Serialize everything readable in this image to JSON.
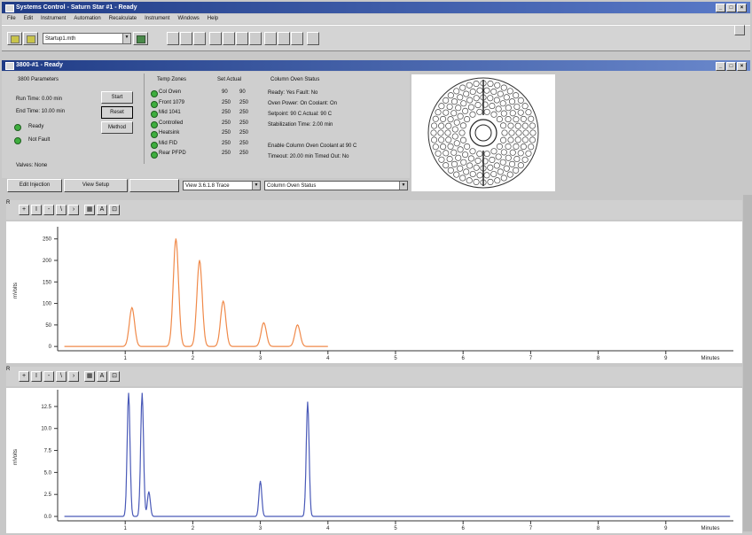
{
  "window": {
    "title": "Systems Control - Saturn Star #1 - Ready"
  },
  "menu": [
    "File",
    "Edit",
    "Instrument",
    "Automation",
    "Recalculate",
    "Instrument",
    "Windows",
    "Help"
  ],
  "toolbar": {
    "method_select": "Startup1.mth"
  },
  "subwindow": {
    "title": "3800-#1 - Ready"
  },
  "status": {
    "section_label": "3800 Parameters",
    "run_time": "Run Time:   0.00 min",
    "end_time": "End Time:  10.00 min",
    "ready_label": "Ready",
    "not_fault_label": "Not Fault",
    "valves_label": "Valves:   None",
    "start_btn": "Start",
    "reset_btn": "Reset",
    "method_btn": "Method",
    "temp_zones_header": "Temp Zones",
    "set_actual_header": "Set  Actual",
    "zones": [
      {
        "name": "Col Oven",
        "set": "90",
        "actual": "90"
      },
      {
        "name": "Front 1079",
        "set": "250",
        "actual": "250"
      },
      {
        "name": "Mid 1041",
        "set": "250",
        "actual": "250"
      },
      {
        "name": "Controlled",
        "set": "250",
        "actual": "250"
      },
      {
        "name": "Heatsink",
        "set": "250",
        "actual": "250"
      },
      {
        "name": "Mid FID",
        "set": "250",
        "actual": "250"
      },
      {
        "name": "Rear PFPD",
        "set": "250",
        "actual": "250"
      }
    ],
    "oven_header": "Column Oven Status",
    "oven_lines": [
      "Ready: Yes     Fault: No",
      "Oven Power: On     Coolant: On",
      "Setpoint: 90 C     Actual: 90 C",
      "Stabilization Time: 2.00 min",
      "",
      "Enable Column Oven Coolant at 90 C",
      "Timeout: 20.00 min     Timed Out: No"
    ],
    "btn_edit_injection": "Edit Injection",
    "btn_view_setup": "View Setup",
    "select_detector": "View 3.6.1.8 Trace",
    "select_status": "Column Oven Status"
  },
  "chart1": {
    "color": "#f08a4a",
    "ylabel": "mVolts",
    "xlabel": "Minutes",
    "yticks": [
      "250",
      "200",
      "150",
      "100",
      "50",
      "0"
    ],
    "xticks": [
      "1",
      "2",
      "3",
      "4",
      "5",
      "6",
      "7",
      "8",
      "9"
    ]
  },
  "chart2": {
    "color": "#4a5ab8",
    "ylabel": "mVolts",
    "xlabel": "Minutes",
    "yticks": [
      "12.5",
      "10.0",
      "7.5",
      "5.0",
      "2.5",
      "0.0"
    ],
    "xticks": [
      "1",
      "2",
      "3",
      "4",
      "5",
      "6",
      "7",
      "8",
      "9"
    ]
  },
  "chart_data": [
    {
      "type": "line",
      "xlabel": "Minutes",
      "ylabel": "mVolts",
      "xlim": [
        0,
        10
      ],
      "ylim": [
        -10,
        270
      ],
      "series": [
        {
          "peaks": [
            {
              "x": 1.1,
              "y": 90
            },
            {
              "x": 1.75,
              "y": 250
            },
            {
              "x": 2.1,
              "y": 200
            },
            {
              "x": 2.45,
              "y": 105
            },
            {
              "x": 3.05,
              "y": 55
            },
            {
              "x": 3.55,
              "y": 50
            }
          ]
        }
      ]
    },
    {
      "type": "line",
      "xlabel": "Minutes",
      "ylabel": "mVolts",
      "xlim": [
        0,
        10
      ],
      "ylim": [
        -0.5,
        14
      ],
      "series": [
        {
          "peaks": [
            {
              "x": 1.05,
              "y": 14
            },
            {
              "x": 1.25,
              "y": 14
            },
            {
              "x": 1.35,
              "y": 2.8
            },
            {
              "x": 3.0,
              "y": 4
            },
            {
              "x": 3.7,
              "y": 13
            }
          ]
        }
      ]
    }
  ]
}
